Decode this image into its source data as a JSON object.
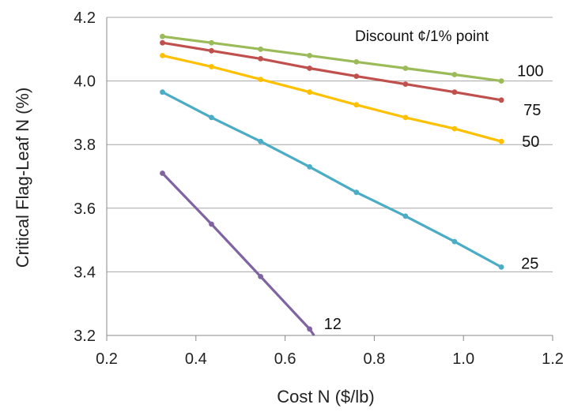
{
  "chart_data": {
    "type": "line",
    "title": "",
    "xlabel": "Cost N ($/lb)",
    "ylabel": "Critical Flag-Leaf N (%)",
    "xlim": [
      0.2,
      1.2
    ],
    "ylim": [
      3.2,
      4.2
    ],
    "x_ticks": [
      "0.2",
      "0.4",
      "0.6",
      "0.8",
      "1.0",
      "1.2"
    ],
    "y_ticks": [
      "3.2",
      "3.4",
      "3.6",
      "3.8",
      "4.0",
      "4.2"
    ],
    "grid": "horizontal",
    "legend_title": "Discount ¢/1% point",
    "series": [
      {
        "name": "100",
        "color": "#9bbb59",
        "x": [
          0.325,
          0.435,
          0.545,
          0.655,
          0.76,
          0.87,
          0.98,
          1.085
        ],
        "y": [
          4.14,
          4.12,
          4.1,
          4.08,
          4.06,
          4.04,
          4.02,
          4.0
        ]
      },
      {
        "name": "75",
        "color": "#c0504d",
        "x": [
          0.325,
          0.435,
          0.545,
          0.655,
          0.76,
          0.87,
          0.98,
          1.085
        ],
        "y": [
          4.12,
          4.095,
          4.07,
          4.04,
          4.015,
          3.99,
          3.965,
          3.94
        ]
      },
      {
        "name": "50",
        "color": "#ffc000",
        "x": [
          0.325,
          0.435,
          0.545,
          0.655,
          0.76,
          0.87,
          0.98,
          1.085
        ],
        "y": [
          4.08,
          4.045,
          4.005,
          3.965,
          3.925,
          3.885,
          3.85,
          3.81
        ]
      },
      {
        "name": "25",
        "color": "#4bacc6",
        "x": [
          0.325,
          0.435,
          0.545,
          0.655,
          0.76,
          0.87,
          0.98,
          1.085
        ],
        "y": [
          3.965,
          3.885,
          3.81,
          3.73,
          3.65,
          3.575,
          3.495,
          3.415
        ]
      },
      {
        "name": "12",
        "color": "#8064a2",
        "x": [
          0.325,
          0.435,
          0.545,
          0.655,
          0.665
        ],
        "y": [
          3.71,
          3.55,
          3.385,
          3.22,
          3.2
        ]
      }
    ]
  }
}
